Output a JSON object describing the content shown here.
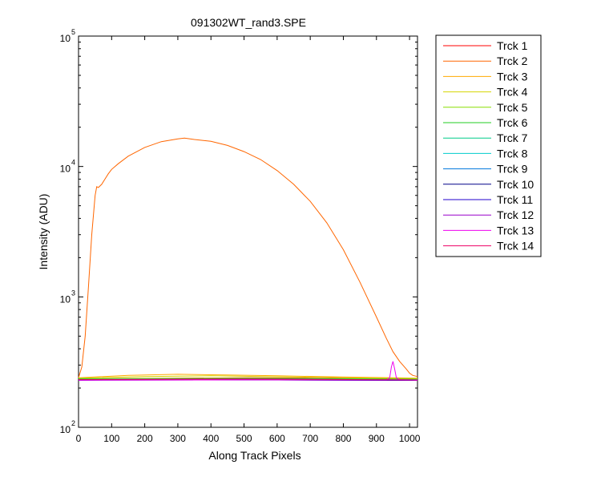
{
  "chart_data": {
    "type": "line",
    "title": "091302WT_rand3.SPE",
    "xlabel": "Along Track Pixels",
    "ylabel": "Intensity (ADU)",
    "xlim": [
      0,
      1024
    ],
    "ylim": [
      100,
      100000
    ],
    "yscale": "log",
    "grid": false,
    "legend_position": "outside-right",
    "x_ticks": [
      "0",
      "100",
      "200",
      "300",
      "400",
      "500",
      "600",
      "700",
      "800",
      "900",
      "1000"
    ],
    "y_ticks": [
      {
        "base": "10",
        "exp": "2"
      },
      {
        "base": "10",
        "exp": "3"
      },
      {
        "base": "10",
        "exp": "4"
      },
      {
        "base": "10",
        "exp": "5"
      }
    ],
    "series": [
      {
        "name": "Trck 1",
        "color": "#ff0000",
        "x": [
          0,
          512,
          1024
        ],
        "y": [
          235,
          240,
          235
        ]
      },
      {
        "name": "Trck 2",
        "color": "#ff6600",
        "x": [
          0,
          10,
          20,
          30,
          40,
          50,
          55,
          60,
          70,
          80,
          90,
          100,
          120,
          150,
          200,
          250,
          300,
          320,
          350,
          400,
          450,
          500,
          550,
          600,
          650,
          700,
          750,
          800,
          850,
          900,
          930,
          950,
          970,
          990,
          1000,
          1010,
          1024
        ],
        "y": [
          240,
          290,
          500,
          1200,
          3000,
          6000,
          7000,
          6900,
          7300,
          8000,
          8800,
          9500,
          10500,
          12000,
          14000,
          15500,
          16300,
          16500,
          16100,
          15600,
          14500,
          13000,
          11300,
          9300,
          7300,
          5400,
          3700,
          2300,
          1300,
          700,
          480,
          380,
          320,
          280,
          260,
          250,
          245
        ]
      },
      {
        "name": "Trck 3",
        "color": "#ffaa00",
        "x": [
          0,
          150,
          300,
          450,
          600,
          800,
          1024
        ],
        "y": [
          240,
          250,
          255,
          252,
          248,
          243,
          238
        ]
      },
      {
        "name": "Trck 4",
        "color": "#d4d400",
        "x": [
          0,
          200,
          400,
          600,
          800,
          1024
        ],
        "y": [
          238,
          245,
          248,
          244,
          240,
          236
        ]
      },
      {
        "name": "Trck 5",
        "color": "#88dd00",
        "x": [
          0,
          512,
          1024
        ],
        "y": [
          236,
          238,
          234
        ]
      },
      {
        "name": "Trck 6",
        "color": "#22cc22",
        "x": [
          0,
          512,
          1024
        ],
        "y": [
          234,
          236,
          233
        ]
      },
      {
        "name": "Trck 7",
        "color": "#00cc88",
        "x": [
          0,
          512,
          1024
        ],
        "y": [
          233,
          235,
          232
        ]
      },
      {
        "name": "Trck 8",
        "color": "#00cccc",
        "x": [
          0,
          512,
          1024
        ],
        "y": [
          232,
          233,
          231
        ]
      },
      {
        "name": "Trck 9",
        "color": "#0077dd",
        "x": [
          0,
          512,
          1024
        ],
        "y": [
          231,
          232,
          230
        ]
      },
      {
        "name": "Trck 10",
        "color": "#000088",
        "x": [
          0,
          512,
          1024
        ],
        "y": [
          230,
          231,
          229
        ]
      },
      {
        "name": "Trck 11",
        "color": "#2200cc",
        "x": [
          0,
          512,
          1024
        ],
        "y": [
          230,
          231,
          229
        ]
      },
      {
        "name": "Trck 12",
        "color": "#9900cc",
        "x": [
          0,
          512,
          1024
        ],
        "y": [
          231,
          232,
          230
        ]
      },
      {
        "name": "Trck 13",
        "color": "#ee00ee",
        "x": [
          0,
          500,
          930,
          940,
          945,
          950,
          955,
          960,
          970,
          1024
        ],
        "y": [
          230,
          231,
          231,
          240,
          290,
          320,
          280,
          240,
          232,
          230
        ]
      },
      {
        "name": "Trck 14",
        "color": "#ee0066",
        "x": [
          0,
          512,
          1024
        ],
        "y": [
          232,
          234,
          231
        ]
      }
    ]
  }
}
